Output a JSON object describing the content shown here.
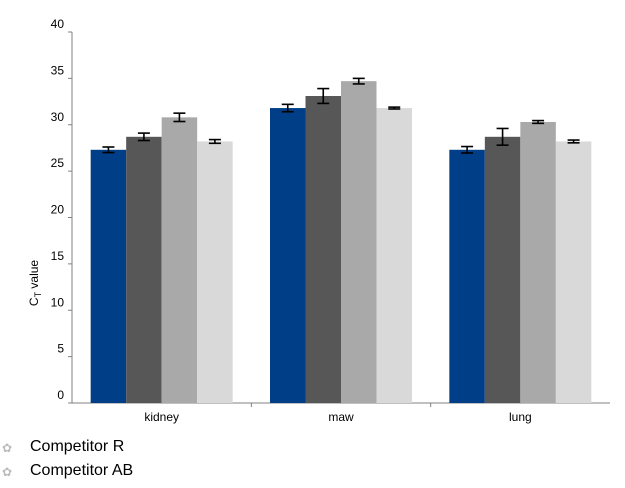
{
  "chart_data": {
    "type": "bar",
    "categories": [
      "kidney",
      "maw",
      "lung"
    ],
    "ylabel_main": "C",
    "ylabel_sub": "T",
    "ylabel_rest": " value",
    "ylim": [
      0,
      40
    ],
    "yticks": [
      0,
      5,
      10,
      15,
      20,
      25,
      30,
      35,
      40
    ],
    "grid": false,
    "series": [
      {
        "color": "#003f87",
        "values": [
          27.3,
          31.8,
          27.3
        ],
        "errors": [
          0.3,
          0.4,
          0.35
        ]
      },
      {
        "color": "#575757",
        "values": [
          28.7,
          33.1,
          28.7
        ],
        "errors": [
          0.4,
          0.8,
          0.9
        ]
      },
      {
        "color": "#a9a9a9",
        "values": [
          30.8,
          34.7,
          30.3
        ],
        "errors": [
          0.45,
          0.3,
          0.15
        ]
      },
      {
        "color": "#d9d9d9",
        "values": [
          28.2,
          31.8,
          28.2
        ],
        "errors": [
          0.2,
          0.1,
          0.15
        ]
      }
    ]
  },
  "legend": [
    {
      "label": "Competitor R",
      "icon": "leaf-icon",
      "glyph": "✿"
    },
    {
      "label": "Competitor AB",
      "icon": "leaf-icon",
      "glyph": "✿"
    }
  ]
}
